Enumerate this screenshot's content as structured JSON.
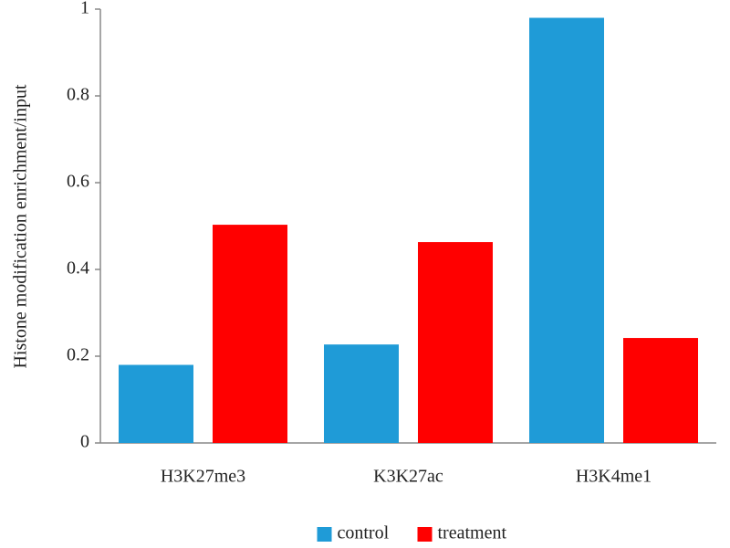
{
  "chart_data": {
    "type": "bar",
    "y_label": "Histone modification enrichment/input",
    "categories": [
      "H3K27me3",
      "K3K27ac",
      "H3K4me1"
    ],
    "series": [
      {
        "name": "control",
        "color": "#1f9bd7",
        "values": [
          0.18,
          0.227,
          0.98
        ]
      },
      {
        "name": "treatment",
        "color": "#ff0000",
        "values": [
          0.503,
          0.463,
          0.242
        ]
      }
    ],
    "ylim": [
      0,
      1
    ],
    "yticks": [
      0,
      0.2,
      0.4,
      0.6,
      0.8,
      1
    ],
    "grid": false,
    "legend": "bottom"
  }
}
